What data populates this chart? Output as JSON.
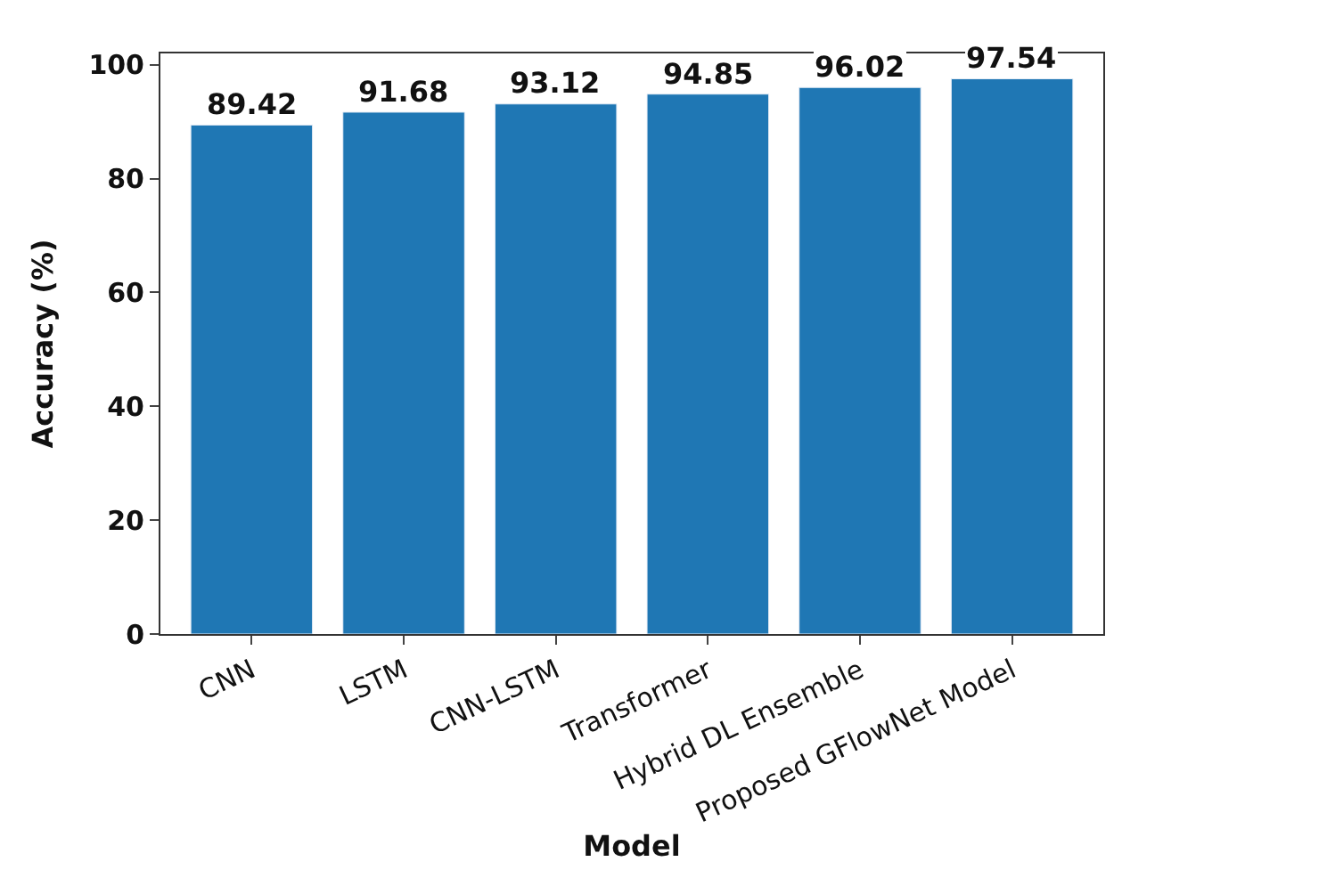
{
  "chart_data": {
    "type": "bar",
    "xlabel": "Model",
    "ylabel": "Accuracy (%)",
    "categories": [
      "CNN",
      "LSTM",
      "CNN-LSTM",
      "Transformer",
      "Hybrid DL Ensemble",
      "Proposed GFlowNet Model"
    ],
    "values": [
      89.42,
      91.68,
      93.12,
      94.85,
      96.02,
      97.54
    ],
    "color": "#1f77b4",
    "ylim": [
      0,
      102
    ],
    "yticks": [
      0,
      20,
      40,
      60,
      80,
      100
    ],
    "data_labels": true,
    "legend": false
  }
}
